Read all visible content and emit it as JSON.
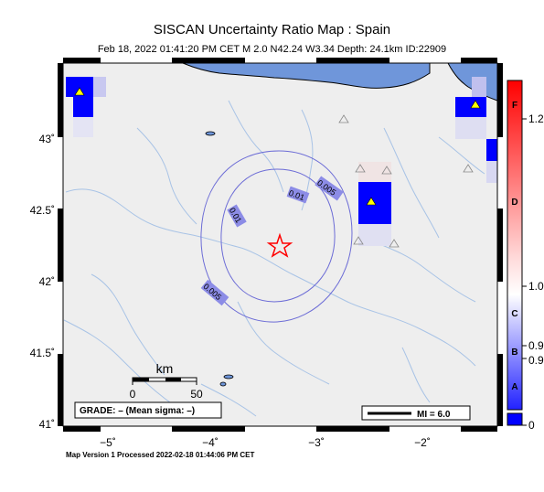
{
  "title": "SISCAN Uncertainty Ratio Map : Spain",
  "subtitle": "Feb 18, 2022 01:41:20 PM CET   M 2.0   N42.24 W3.34   Depth: 24.1km   ID:22909",
  "footer": "Map Version 1 Processed 2022-02-18 01:44:06 PM CET",
  "grade_text": "GRADE: – (Mean sigma: –)",
  "mi_label": "MI = 6.0",
  "scale_bar": {
    "unit": "km",
    "start": "0",
    "end": "50"
  },
  "contour_labels": [
    "0.01",
    "0.01",
    "0.005",
    "0.005"
  ],
  "lon_labels": [
    "−5˚",
    "−4˚",
    "−3˚",
    "−2˚"
  ],
  "lat_labels": [
    "41˚",
    "41.5˚",
    "42˚",
    "42.5˚",
    "43˚"
  ],
  "colorbar": {
    "values": [
      "1.2",
      "1.0",
      "0.9",
      "0.9",
      "0"
    ],
    "letters": [
      "F",
      "D",
      "C",
      "B",
      "A"
    ],
    "colors": {
      "top": "#ff0000",
      "mid": "#ffffff",
      "bottom": "#0000ff"
    }
  },
  "colors": {
    "land": "#eeeeee",
    "water": "#6f96da",
    "rivers": "#a8c3e6",
    "contour": "#6c6cd6",
    "epicenter": "#ff0000",
    "station_fill": "#ffff00"
  },
  "icons": [
    "star-icon",
    "triangle-icon"
  ]
}
